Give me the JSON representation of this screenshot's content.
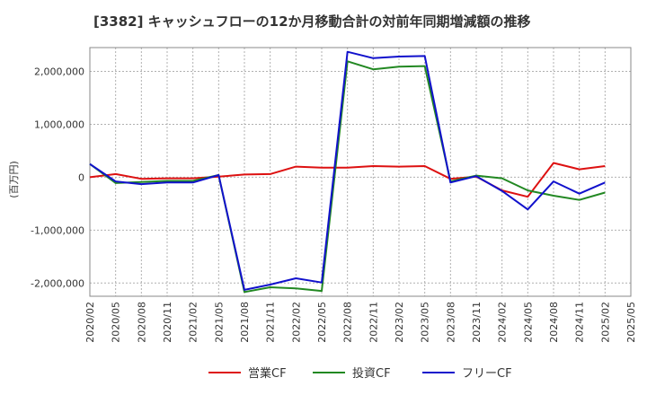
{
  "chart_data": {
    "type": "line",
    "title": "[3382]  キャッシュフローの12か月移動合計の対前年同期増減額の推移",
    "ylabel": "(百万円)",
    "xlabel": "",
    "ylim": [
      -2250000,
      2450000
    ],
    "yticks": [
      2000000,
      1000000,
      0,
      -1000000,
      -2000000
    ],
    "ytick_labels": [
      "2,000,000",
      "1,000,000",
      "0",
      "-1,000,000",
      "-2,000,000"
    ],
    "xtick_labels": [
      "2020/02",
      "2020/05",
      "2020/08",
      "2020/11",
      "2021/02",
      "2021/05",
      "2021/08",
      "2021/11",
      "2022/02",
      "2022/05",
      "2022/08",
      "2022/11",
      "2023/02",
      "2023/05",
      "2023/08",
      "2023/11",
      "2024/02",
      "2024/05",
      "2024/08",
      "2024/11",
      "2025/02",
      "2025/05"
    ],
    "categories": [
      "2020/02",
      "2020/05",
      "2020/08",
      "2020/11",
      "2021/02",
      "2021/05",
      "2021/08",
      "2021/11",
      "2022/02",
      "2022/05",
      "2022/08",
      "2022/11",
      "2023/02",
      "2023/05",
      "2023/08",
      "2023/11",
      "2024/02",
      "2024/05",
      "2024/08",
      "2024/11",
      "2025/02"
    ],
    "grid": true,
    "legend_position": "bottom",
    "series": [
      {
        "name": "営業CF",
        "color": "#dd1111",
        "values": [
          0,
          60000,
          -30000,
          -20000,
          -20000,
          10000,
          50000,
          60000,
          200000,
          180000,
          180000,
          210000,
          200000,
          210000,
          -30000,
          10000,
          -250000,
          -370000,
          270000,
          150000,
          210000
        ]
      },
      {
        "name": "投資CF",
        "color": "#228822",
        "values": [
          250000,
          -110000,
          -90000,
          -70000,
          -70000,
          40000,
          -2170000,
          -2080000,
          -2100000,
          -2150000,
          2190000,
          2040000,
          2090000,
          2100000,
          -80000,
          30000,
          -20000,
          -250000,
          -350000,
          -430000,
          -290000
        ]
      },
      {
        "name": "フリーCF",
        "color": "#1111cc",
        "values": [
          250000,
          -80000,
          -130000,
          -100000,
          -100000,
          40000,
          -2130000,
          -2030000,
          -1910000,
          -1990000,
          2370000,
          2250000,
          2280000,
          2290000,
          -100000,
          20000,
          -260000,
          -610000,
          -80000,
          -310000,
          -100000
        ]
      }
    ]
  }
}
